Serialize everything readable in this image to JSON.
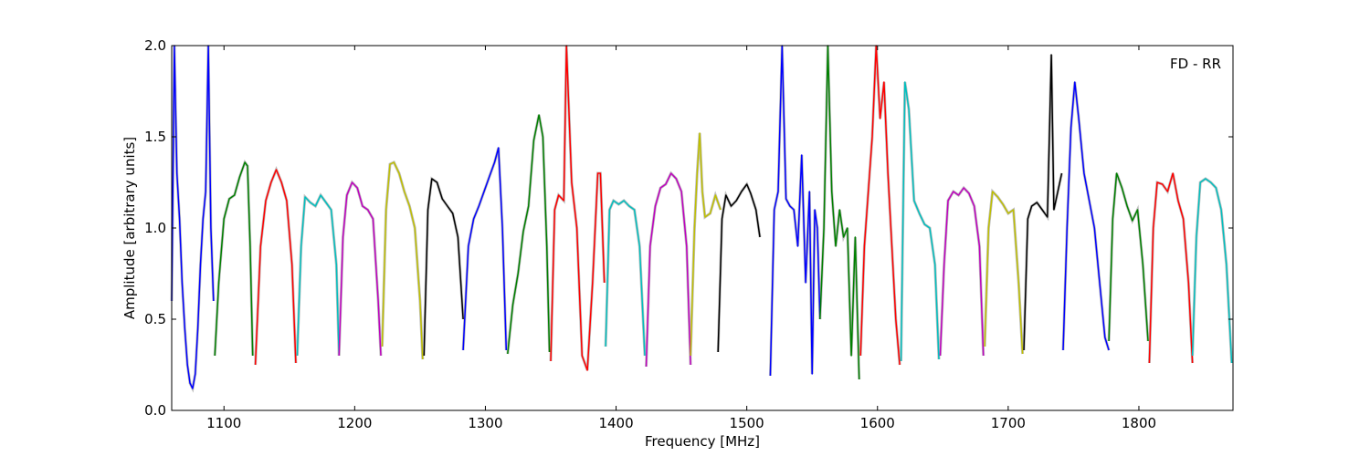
{
  "chart_data": {
    "type": "line",
    "title": "",
    "annotation": "FD - RR",
    "xlabel": "Frequency [MHz]",
    "ylabel": "Amplitude [arbitrary units]",
    "xlim": [
      1060,
      1872
    ],
    "ylim": [
      0.0,
      2.0
    ],
    "grid": false,
    "legend": "none",
    "x_ticks": [
      1100,
      1200,
      1300,
      1400,
      1500,
      1600,
      1700,
      1800
    ],
    "x_tick_labels": [
      "1100",
      "1200",
      "1300",
      "1400",
      "1500",
      "1600",
      "1700",
      "1800"
    ],
    "y_ticks": [
      0.0,
      0.5,
      1.0,
      1.5,
      2.0
    ],
    "y_tick_labels": [
      "0.0",
      "0.5",
      "1.0",
      "1.5",
      "2.0"
    ],
    "background_color": "#c0c0c0",
    "series": [
      {
        "color": "#0000ff",
        "x": [
          1060,
          1062,
          1064,
          1066,
          1068,
          1070,
          1072,
          1074,
          1076,
          1078,
          1080,
          1082,
          1084,
          1086,
          1088,
          1090,
          1092
        ],
        "y": [
          0.6,
          2.0,
          1.3,
          1.05,
          0.7,
          0.45,
          0.25,
          0.15,
          0.12,
          0.2,
          0.45,
          0.8,
          1.05,
          1.2,
          2.0,
          1.0,
          0.6
        ]
      },
      {
        "color": "#008000",
        "x": [
          1093,
          1096,
          1100,
          1104,
          1108,
          1112,
          1116,
          1118,
          1120,
          1122
        ],
        "y": [
          0.3,
          0.7,
          1.05,
          1.16,
          1.18,
          1.28,
          1.36,
          1.34,
          0.9,
          0.3
        ]
      },
      {
        "color": "#ff0000",
        "x": [
          1124,
          1128,
          1132,
          1136,
          1140,
          1144,
          1148,
          1152,
          1155
        ],
        "y": [
          0.25,
          0.9,
          1.15,
          1.25,
          1.32,
          1.25,
          1.15,
          0.8,
          0.26
        ]
      },
      {
        "color": "#00bfbf",
        "x": [
          1156,
          1159,
          1162,
          1166,
          1170,
          1174,
          1178,
          1182,
          1186,
          1188
        ],
        "y": [
          0.3,
          0.9,
          1.17,
          1.14,
          1.12,
          1.18,
          1.14,
          1.1,
          0.8,
          0.3
        ]
      },
      {
        "color": "#bf00bf",
        "x": [
          1188,
          1191,
          1194,
          1198,
          1202,
          1206,
          1210,
          1214,
          1218,
          1220
        ],
        "y": [
          0.3,
          0.95,
          1.18,
          1.25,
          1.22,
          1.12,
          1.1,
          1.05,
          0.6,
          0.3
        ]
      },
      {
        "color": "#bfbf00",
        "x": [
          1221,
          1224,
          1227,
          1230,
          1234,
          1238,
          1242,
          1246,
          1250,
          1252
        ],
        "y": [
          0.35,
          1.1,
          1.35,
          1.36,
          1.3,
          1.2,
          1.12,
          1.0,
          0.6,
          0.28
        ]
      },
      {
        "color": "#000000",
        "x": [
          1253,
          1256,
          1259,
          1263,
          1267,
          1271,
          1275,
          1279,
          1283
        ],
        "y": [
          0.3,
          1.1,
          1.27,
          1.25,
          1.16,
          1.12,
          1.08,
          0.95,
          0.5
        ]
      },
      {
        "color": "#0000ff",
        "x": [
          1283,
          1287,
          1291,
          1295,
          1299,
          1303,
          1307,
          1310,
          1313,
          1316
        ],
        "y": [
          0.33,
          0.9,
          1.05,
          1.12,
          1.2,
          1.28,
          1.36,
          1.44,
          1.0,
          0.33
        ]
      },
      {
        "color": "#008000",
        "x": [
          1317,
          1321,
          1325,
          1329,
          1333,
          1337,
          1341,
          1344,
          1347,
          1349
        ],
        "y": [
          0.31,
          0.58,
          0.75,
          0.98,
          1.12,
          1.48,
          1.62,
          1.5,
          0.9,
          0.32
        ]
      },
      {
        "color": "#ff0000",
        "x": [
          1350,
          1353,
          1356,
          1360,
          1362,
          1366,
          1370,
          1374,
          1378,
          1382,
          1386,
          1388,
          1391
        ],
        "y": [
          0.27,
          1.1,
          1.18,
          1.15,
          2.0,
          1.25,
          1.0,
          0.3,
          0.22,
          0.7,
          1.3,
          1.3,
          0.7
        ]
      },
      {
        "color": "#00bfbf",
        "x": [
          1392,
          1395,
          1398,
          1402,
          1406,
          1410,
          1414,
          1418,
          1422
        ],
        "y": [
          0.35,
          1.1,
          1.15,
          1.13,
          1.15,
          1.12,
          1.1,
          0.9,
          0.3
        ]
      },
      {
        "color": "#bf00bf",
        "x": [
          1423,
          1426,
          1430,
          1434,
          1438,
          1442,
          1446,
          1450,
          1454,
          1457
        ],
        "y": [
          0.24,
          0.9,
          1.12,
          1.22,
          1.24,
          1.3,
          1.27,
          1.2,
          0.9,
          0.25
        ]
      },
      {
        "color": "#bfbf00",
        "x": [
          1457,
          1460,
          1462,
          1464,
          1466,
          1468,
          1472,
          1476,
          1480
        ],
        "y": [
          0.3,
          1.0,
          1.3,
          1.52,
          1.2,
          1.06,
          1.08,
          1.18,
          1.1
        ]
      },
      {
        "color": "#000000",
        "x": [
          1478,
          1481,
          1484,
          1488,
          1492,
          1496,
          1500,
          1503,
          1507,
          1510
        ],
        "y": [
          0.32,
          1.05,
          1.18,
          1.12,
          1.15,
          1.2,
          1.24,
          1.19,
          1.1,
          0.95
        ]
      },
      {
        "color": "#0000ff",
        "x": [
          1518,
          1521,
          1524,
          1527,
          1530,
          1533,
          1536,
          1539,
          1542,
          1545,
          1548,
          1550,
          1552,
          1554,
          1556
        ],
        "y": [
          0.19,
          1.1,
          1.2,
          2.0,
          1.16,
          1.12,
          1.1,
          0.9,
          1.4,
          0.7,
          1.2,
          0.2,
          1.1,
          1.0,
          0.5
        ]
      },
      {
        "color": "#008000",
        "x": [
          1556,
          1559,
          1562,
          1565,
          1568,
          1571,
          1574,
          1577,
          1580,
          1583,
          1586
        ],
        "y": [
          0.5,
          1.0,
          2.0,
          1.2,
          0.9,
          1.1,
          0.95,
          1.0,
          0.3,
          0.95,
          0.17
        ]
      },
      {
        "color": "#ff0000",
        "x": [
          1587,
          1590,
          1593,
          1596,
          1599,
          1602,
          1605,
          1608,
          1611,
          1614,
          1617
        ],
        "y": [
          0.3,
          0.9,
          1.2,
          1.5,
          2.0,
          1.6,
          1.8,
          1.3,
          0.9,
          0.5,
          0.25
        ]
      },
      {
        "color": "#00bfbf",
        "x": [
          1618,
          1621,
          1624,
          1628,
          1632,
          1636,
          1640,
          1644,
          1647
        ],
        "y": [
          0.27,
          1.8,
          1.65,
          1.15,
          1.08,
          1.02,
          1.0,
          0.8,
          0.28
        ]
      },
      {
        "color": "#bf00bf",
        "x": [
          1648,
          1651,
          1654,
          1658,
          1662,
          1666,
          1670,
          1674,
          1678,
          1681
        ],
        "y": [
          0.3,
          0.8,
          1.15,
          1.2,
          1.18,
          1.22,
          1.19,
          1.12,
          0.9,
          0.3
        ]
      },
      {
        "color": "#bfbf00",
        "x": [
          1682,
          1685,
          1688,
          1692,
          1696,
          1700,
          1704,
          1708,
          1711
        ],
        "y": [
          0.35,
          1.0,
          1.2,
          1.17,
          1.13,
          1.08,
          1.1,
          0.7,
          0.31
        ]
      },
      {
        "color": "#000000",
        "x": [
          1712,
          1715,
          1718,
          1722,
          1726,
          1730,
          1733,
          1735,
          1738,
          1741
        ],
        "y": [
          0.33,
          1.05,
          1.12,
          1.14,
          1.1,
          1.06,
          1.95,
          1.1,
          1.2,
          1.3
        ]
      },
      {
        "color": "#0000ff",
        "x": [
          1742,
          1745,
          1748,
          1751,
          1754,
          1758,
          1762,
          1766,
          1770,
          1774,
          1777
        ],
        "y": [
          0.33,
          1.0,
          1.55,
          1.8,
          1.6,
          1.3,
          1.15,
          1.0,
          0.7,
          0.4,
          0.33
        ]
      },
      {
        "color": "#008000",
        "x": [
          1777,
          1780,
          1783,
          1787,
          1791,
          1795,
          1799,
          1803,
          1807
        ],
        "y": [
          0.38,
          1.05,
          1.3,
          1.22,
          1.12,
          1.04,
          1.1,
          0.8,
          0.38
        ]
      },
      {
        "color": "#ff0000",
        "x": [
          1808,
          1811,
          1814,
          1818,
          1822,
          1826,
          1830,
          1834,
          1838,
          1841
        ],
        "y": [
          0.26,
          1.0,
          1.25,
          1.24,
          1.2,
          1.3,
          1.15,
          1.05,
          0.7,
          0.26
        ]
      },
      {
        "color": "#00bfbf",
        "x": [
          1841,
          1844,
          1847,
          1851,
          1855,
          1859,
          1863,
          1867,
          1871
        ],
        "y": [
          0.3,
          0.95,
          1.25,
          1.27,
          1.25,
          1.22,
          1.1,
          0.8,
          0.26
        ]
      }
    ]
  }
}
